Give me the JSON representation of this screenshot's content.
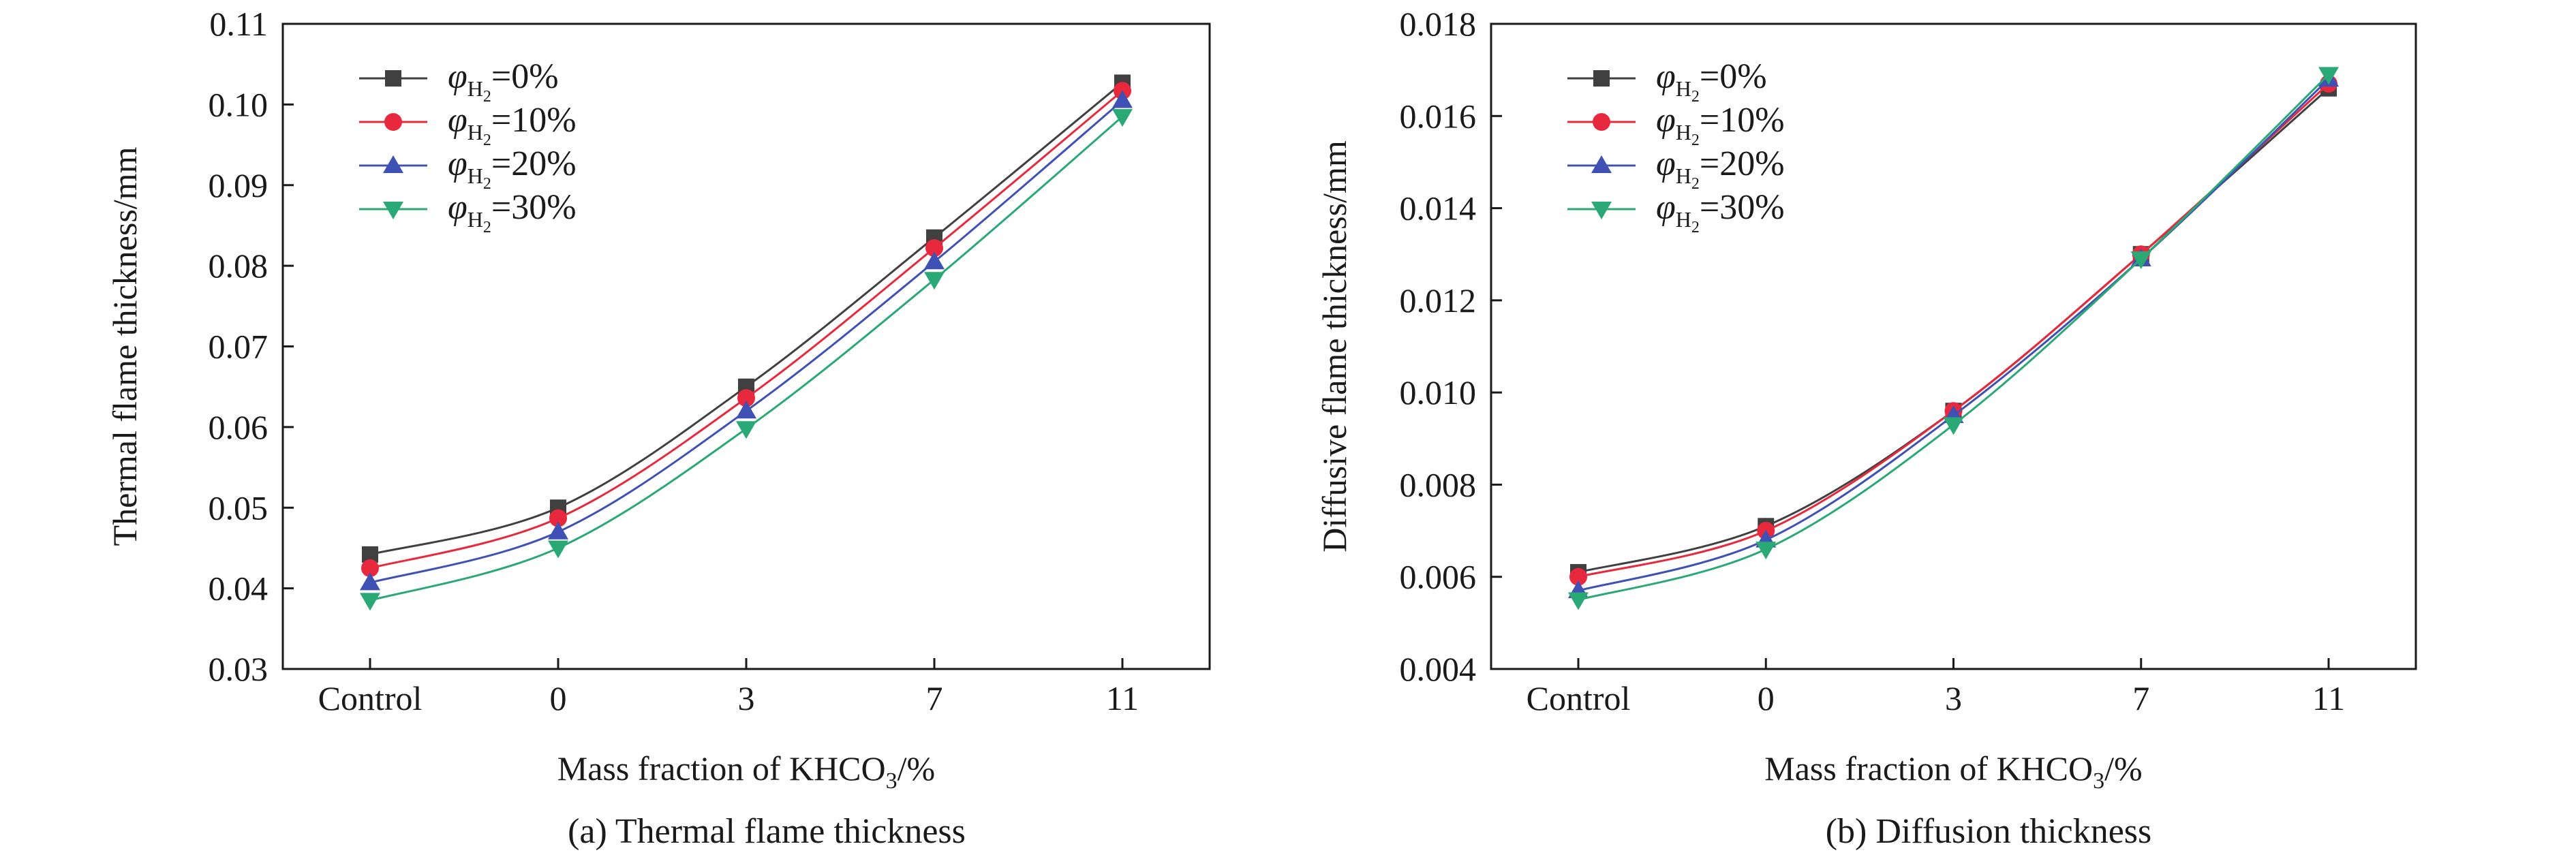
{
  "chart_data": [
    {
      "type": "line",
      "caption": "(a) Thermal flame thickness",
      "xlabel": "Mass fraction of KHCO₃/%",
      "ylabel": "Thermal flame thickness/mm",
      "categories": [
        "Control",
        "0",
        "3",
        "7",
        "11"
      ],
      "ylim": [
        0.03,
        0.11
      ],
      "yticks": [
        "0.03",
        "0.04",
        "0.05",
        "0.06",
        "0.07",
        "0.08",
        "0.09",
        "0.10",
        "0.11"
      ],
      "legend_position": "top-left",
      "grid": false,
      "series": [
        {
          "name": "φH₂=0%",
          "color": "#404040",
          "marker": "square",
          "values": [
            0.0442,
            0.05,
            0.065,
            0.0835,
            0.1027
          ]
        },
        {
          "name": "φH₂=10%",
          "color": "#e8283c",
          "marker": "circle",
          "values": [
            0.0425,
            0.0487,
            0.0636,
            0.0822,
            0.1017
          ]
        },
        {
          "name": "φH₂=20%",
          "color": "#3f51b5",
          "marker": "triangle-up",
          "values": [
            0.0407,
            0.047,
            0.062,
            0.0805,
            0.1005
          ]
        },
        {
          "name": "φH₂=30%",
          "color": "#2aa876",
          "marker": "triangle-down",
          "values": [
            0.0385,
            0.045,
            0.0598,
            0.0783,
            0.0985
          ]
        }
      ]
    },
    {
      "type": "line",
      "caption": "(b) Diffusion thickness",
      "xlabel": "Mass fraction of KHCO₃/%",
      "ylabel": "Diffusive flame thickness/mm",
      "categories": [
        "Control",
        "0",
        "3",
        "7",
        "11"
      ],
      "ylim": [
        0.004,
        0.018
      ],
      "yticks": [
        "0.004",
        "0.006",
        "0.008",
        "0.010",
        "0.012",
        "0.014",
        "0.016",
        "0.018"
      ],
      "legend_position": "top-left",
      "grid": false,
      "series": [
        {
          "name": "φH₂=0%",
          "color": "#404040",
          "marker": "square",
          "values": [
            0.0061,
            0.0071,
            0.0096,
            0.013,
            0.0166
          ]
        },
        {
          "name": "φH₂=10%",
          "color": "#e8283c",
          "marker": "circle",
          "values": [
            0.006,
            0.007,
            0.0096,
            0.013,
            0.0167
          ]
        },
        {
          "name": "φH₂=20%",
          "color": "#3f51b5",
          "marker": "triangle-up",
          "values": [
            0.0057,
            0.0068,
            0.0095,
            0.0129,
            0.0168
          ]
        },
        {
          "name": "φH₂=30%",
          "color": "#2aa876",
          "marker": "triangle-down",
          "values": [
            0.0055,
            0.0066,
            0.0093,
            0.0129,
            0.0169
          ]
        }
      ]
    }
  ]
}
